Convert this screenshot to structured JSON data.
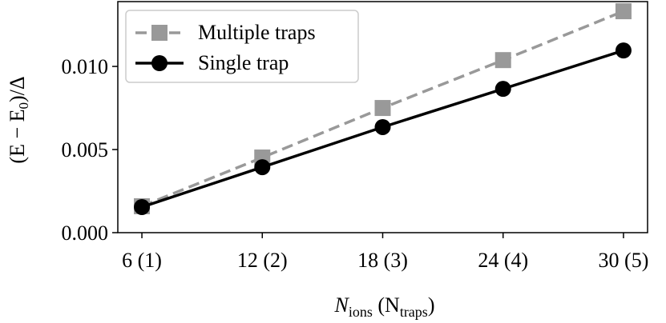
{
  "chart_data": {
    "type": "line",
    "x": [
      6,
      12,
      18,
      24,
      30
    ],
    "series": [
      {
        "name": "Multiple traps",
        "color": "#999999",
        "dash": true,
        "marker": "square",
        "values": [
          0.00159,
          0.00452,
          0.0075,
          0.01038,
          0.01332
        ]
      },
      {
        "name": "Single trap",
        "color": "#000000",
        "dash": false,
        "marker": "circle",
        "values": [
          0.00154,
          0.00394,
          0.00635,
          0.00865,
          0.01096
        ]
      }
    ],
    "xlim": [
      4.8,
      31.2
    ],
    "ylim": [
      0,
      0.0139
    ],
    "xticks": [
      {
        "value": 6,
        "label": "6 (1)"
      },
      {
        "value": 12,
        "label": "12 (2)"
      },
      {
        "value": 18,
        "label": "18 (3)"
      },
      {
        "value": 24,
        "label": "24 (4)"
      },
      {
        "value": 30,
        "label": "30 (5)"
      }
    ],
    "yticks": [
      {
        "value": 0,
        "label": "0.000"
      },
      {
        "value": 0.005,
        "label": "0.005"
      },
      {
        "value": 0.01,
        "label": "0.010"
      }
    ],
    "xlabel": [
      "N",
      "ions",
      " (N",
      "traps",
      ")"
    ],
    "ylabel": [
      "(E − E",
      "0",
      ")/Δ"
    ],
    "legend": "upper left"
  }
}
